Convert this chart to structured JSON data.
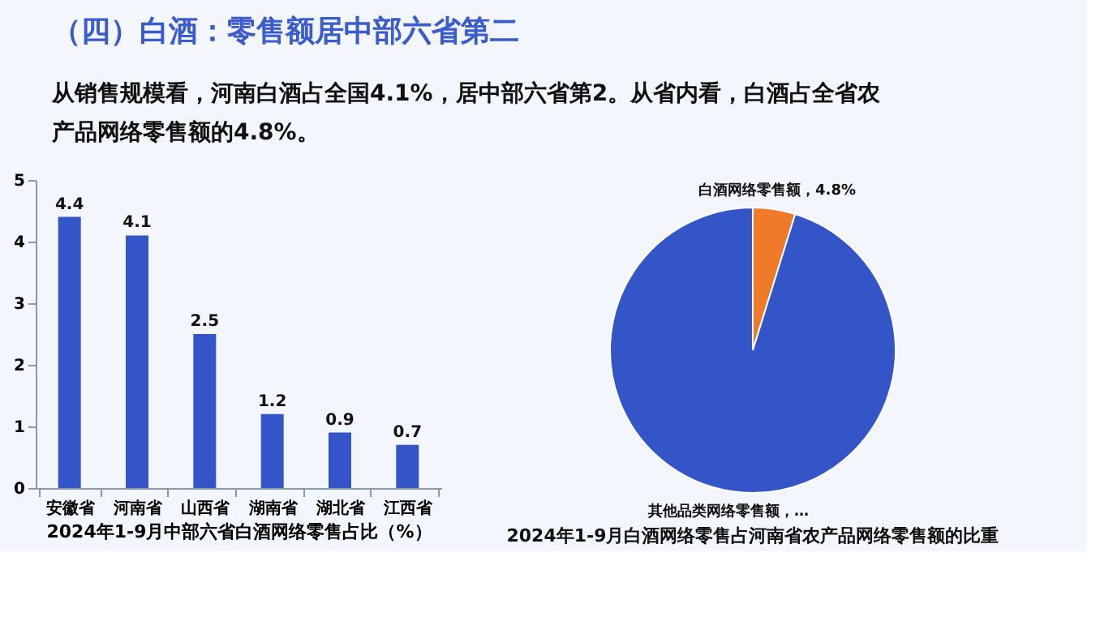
{
  "chart_data": [
    {
      "type": "other",
      "title": "（四）白酒：零售额居中部六省第二",
      "subtitle": "从销售规模看，河南白酒占全国4.1%，居中部六省第2。从省内看，白酒占全省农产品网络零售额的4.8%。"
    },
    {
      "type": "bar",
      "xlabel": "2024年1-9月中部六省白酒网络零售占比（%）",
      "categories": [
        "安徽省",
        "河南省",
        "山西省",
        "湖南省",
        "湖北省",
        "江西省"
      ],
      "values": [
        4.4,
        4.1,
        2.5,
        1.2,
        0.9,
        0.7
      ],
      "color": "#3355c8",
      "ylim": [
        0,
        5
      ],
      "yticks": [
        0,
        1,
        2,
        3,
        4,
        5
      ],
      "data_labels": true,
      "grid": false
    },
    {
      "type": "pie",
      "title": "2024年1-9月白酒网络零售占河南省农产品网络零售额的比重",
      "categories": [
        "白酒网络零售额",
        "其他品类网络零售额"
      ],
      "values": [
        4.8,
        95.2
      ],
      "colors": [
        "#ef7a2a",
        "#3355c8"
      ],
      "value_labels": [
        "4.8%",
        "…"
      ]
    }
  ]
}
